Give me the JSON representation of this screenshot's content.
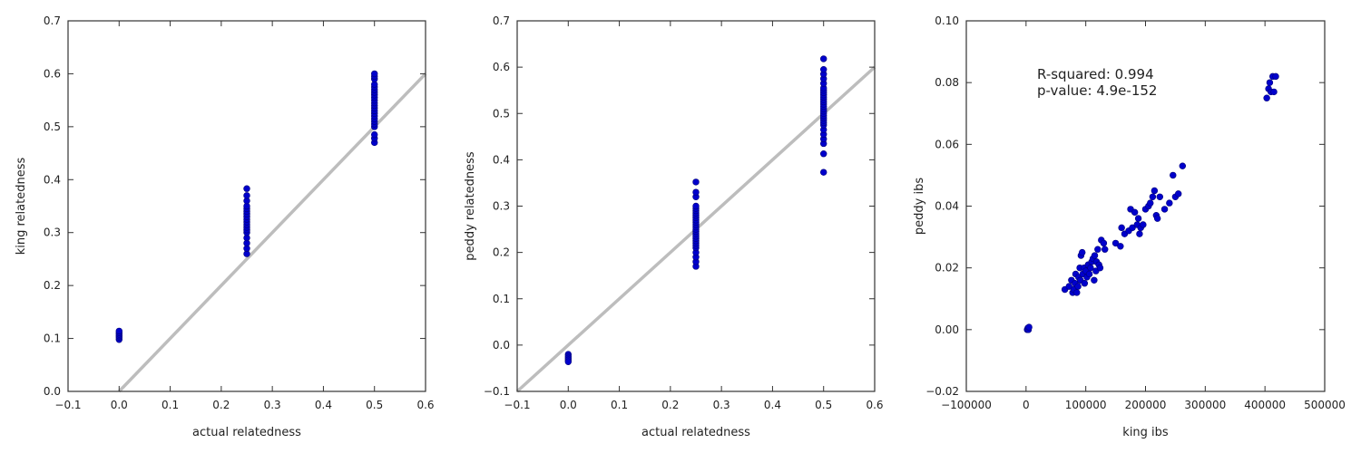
{
  "colors": {
    "point": "#0000cc",
    "point_edge": "#00007a",
    "reference_line": "#bdbdbd",
    "axes": "#333333"
  },
  "chart_data": [
    {
      "type": "scatter",
      "xlabel": "actual relatedness",
      "ylabel": "king relatedness",
      "xlim": [
        -0.1,
        0.6
      ],
      "ylim": [
        0.0,
        0.7
      ],
      "xticks": [
        "−0.1",
        "0.0",
        "0.1",
        "0.2",
        "0.3",
        "0.4",
        "0.5",
        "0.6"
      ],
      "yticks": [
        "0.0",
        "0.1",
        "0.2",
        "0.3",
        "0.4",
        "0.5",
        "0.6",
        "0.7"
      ],
      "grid": false,
      "reference_line": {
        "from": [
          0.0,
          0.0
        ],
        "to": [
          0.6,
          0.6
        ]
      },
      "points": [
        [
          0.0,
          0.098
        ],
        [
          0.0,
          0.102
        ],
        [
          0.0,
          0.105
        ],
        [
          0.0,
          0.108
        ],
        [
          0.0,
          0.111
        ],
        [
          0.0,
          0.114
        ],
        [
          0.25,
          0.26
        ],
        [
          0.25,
          0.27
        ],
        [
          0.25,
          0.28
        ],
        [
          0.25,
          0.29
        ],
        [
          0.25,
          0.3
        ],
        [
          0.25,
          0.305
        ],
        [
          0.25,
          0.31
        ],
        [
          0.25,
          0.315
        ],
        [
          0.25,
          0.32
        ],
        [
          0.25,
          0.325
        ],
        [
          0.25,
          0.33
        ],
        [
          0.25,
          0.335
        ],
        [
          0.25,
          0.34
        ],
        [
          0.25,
          0.345
        ],
        [
          0.25,
          0.35
        ],
        [
          0.25,
          0.36
        ],
        [
          0.25,
          0.37
        ],
        [
          0.25,
          0.383
        ],
        [
          0.5,
          0.47
        ],
        [
          0.5,
          0.478
        ],
        [
          0.5,
          0.485
        ],
        [
          0.5,
          0.5
        ],
        [
          0.5,
          0.505
        ],
        [
          0.5,
          0.51
        ],
        [
          0.5,
          0.515
        ],
        [
          0.5,
          0.52
        ],
        [
          0.5,
          0.525
        ],
        [
          0.5,
          0.53
        ],
        [
          0.5,
          0.535
        ],
        [
          0.5,
          0.54
        ],
        [
          0.5,
          0.545
        ],
        [
          0.5,
          0.55
        ],
        [
          0.5,
          0.555
        ],
        [
          0.5,
          0.56
        ],
        [
          0.5,
          0.565
        ],
        [
          0.5,
          0.57
        ],
        [
          0.5,
          0.575
        ],
        [
          0.5,
          0.58
        ],
        [
          0.5,
          0.59
        ],
        [
          0.5,
          0.595
        ],
        [
          0.5,
          0.6
        ]
      ],
      "annotation": []
    },
    {
      "type": "scatter",
      "xlabel": "actual relatedness",
      "ylabel": "peddy relatedness",
      "xlim": [
        -0.1,
        0.6
      ],
      "ylim": [
        -0.1,
        0.7
      ],
      "xticks": [
        "−0.1",
        "0.0",
        "0.1",
        "0.2",
        "0.3",
        "0.4",
        "0.5",
        "0.6"
      ],
      "yticks": [
        "−0.1",
        "0.0",
        "0.1",
        "0.2",
        "0.3",
        "0.4",
        "0.5",
        "0.6",
        "0.7"
      ],
      "grid": false,
      "reference_line": {
        "from": [
          -0.1,
          -0.1
        ],
        "to": [
          0.6,
          0.6
        ]
      },
      "points": [
        [
          0.0,
          -0.02
        ],
        [
          0.0,
          -0.024
        ],
        [
          0.0,
          -0.028
        ],
        [
          0.0,
          -0.032
        ],
        [
          0.0,
          -0.036
        ],
        [
          0.25,
          0.17
        ],
        [
          0.25,
          0.18
        ],
        [
          0.25,
          0.19
        ],
        [
          0.25,
          0.2
        ],
        [
          0.25,
          0.21
        ],
        [
          0.25,
          0.215
        ],
        [
          0.25,
          0.22
        ],
        [
          0.25,
          0.225
        ],
        [
          0.25,
          0.23
        ],
        [
          0.25,
          0.235
        ],
        [
          0.25,
          0.24
        ],
        [
          0.25,
          0.245
        ],
        [
          0.25,
          0.25
        ],
        [
          0.25,
          0.255
        ],
        [
          0.25,
          0.26
        ],
        [
          0.25,
          0.265
        ],
        [
          0.25,
          0.27
        ],
        [
          0.25,
          0.275
        ],
        [
          0.25,
          0.28
        ],
        [
          0.25,
          0.285
        ],
        [
          0.25,
          0.29
        ],
        [
          0.25,
          0.295
        ],
        [
          0.25,
          0.3
        ],
        [
          0.25,
          0.32
        ],
        [
          0.25,
          0.33
        ],
        [
          0.25,
          0.352
        ],
        [
          0.5,
          0.373
        ],
        [
          0.5,
          0.413
        ],
        [
          0.5,
          0.435
        ],
        [
          0.5,
          0.445
        ],
        [
          0.5,
          0.455
        ],
        [
          0.5,
          0.465
        ],
        [
          0.5,
          0.475
        ],
        [
          0.5,
          0.48
        ],
        [
          0.5,
          0.485
        ],
        [
          0.5,
          0.49
        ],
        [
          0.5,
          0.495
        ],
        [
          0.5,
          0.5
        ],
        [
          0.5,
          0.505
        ],
        [
          0.5,
          0.51
        ],
        [
          0.5,
          0.515
        ],
        [
          0.5,
          0.52
        ],
        [
          0.5,
          0.525
        ],
        [
          0.5,
          0.53
        ],
        [
          0.5,
          0.535
        ],
        [
          0.5,
          0.54
        ],
        [
          0.5,
          0.545
        ],
        [
          0.5,
          0.55
        ],
        [
          0.5,
          0.555
        ],
        [
          0.5,
          0.565
        ],
        [
          0.5,
          0.575
        ],
        [
          0.5,
          0.585
        ],
        [
          0.5,
          0.595
        ],
        [
          0.5,
          0.618
        ]
      ],
      "annotation": []
    },
    {
      "type": "scatter",
      "xlabel": "king ibs",
      "ylabel": "peddy ibs",
      "xlim": [
        -100000,
        500000
      ],
      "ylim": [
        -0.02,
        0.1
      ],
      "xticks": [
        "−100000",
        "0",
        "100000",
        "200000",
        "300000",
        "400000",
        "500000"
      ],
      "yticks": [
        "−0.02",
        "0.00",
        "0.02",
        "0.04",
        "0.06",
        "0.08",
        "0.10"
      ],
      "grid": false,
      "reference_line": null,
      "points": [
        [
          2000,
          0.0
        ],
        [
          3000,
          0.0005
        ],
        [
          4000,
          0.0
        ],
        [
          5000,
          0.0008
        ],
        [
          65000,
          0.013
        ],
        [
          72000,
          0.014
        ],
        [
          76000,
          0.016
        ],
        [
          78000,
          0.012
        ],
        [
          80000,
          0.013
        ],
        [
          82000,
          0.015
        ],
        [
          83000,
          0.018
        ],
        [
          85000,
          0.012
        ],
        [
          87000,
          0.014
        ],
        [
          88000,
          0.017
        ],
        [
          90000,
          0.02
        ],
        [
          91000,
          0.016
        ],
        [
          92000,
          0.024
        ],
        [
          94000,
          0.025
        ],
        [
          95000,
          0.018
        ],
        [
          97000,
          0.02
        ],
        [
          98000,
          0.015
        ],
        [
          100000,
          0.019
        ],
        [
          102000,
          0.017
        ],
        [
          104000,
          0.021
        ],
        [
          106000,
          0.018
        ],
        [
          108000,
          0.02
        ],
        [
          110000,
          0.022
        ],
        [
          112000,
          0.023
        ],
        [
          114000,
          0.016
        ],
        [
          115000,
          0.024
        ],
        [
          117000,
          0.019
        ],
        [
          118000,
          0.022
        ],
        [
          120000,
          0.026
        ],
        [
          122000,
          0.021
        ],
        [
          124000,
          0.02
        ],
        [
          126000,
          0.029
        ],
        [
          130000,
          0.028
        ],
        [
          132000,
          0.026
        ],
        [
          150000,
          0.028
        ],
        [
          158000,
          0.027
        ],
        [
          160000,
          0.033
        ],
        [
          165000,
          0.031
        ],
        [
          172000,
          0.032
        ],
        [
          175000,
          0.039
        ],
        [
          178000,
          0.033
        ],
        [
          182000,
          0.038
        ],
        [
          186000,
          0.034
        ],
        [
          188000,
          0.036
        ],
        [
          190000,
          0.031
        ],
        [
          192000,
          0.033
        ],
        [
          196000,
          0.034
        ],
        [
          200000,
          0.039
        ],
        [
          205000,
          0.04
        ],
        [
          208000,
          0.041
        ],
        [
          212000,
          0.043
        ],
        [
          215000,
          0.045
        ],
        [
          218000,
          0.037
        ],
        [
          220000,
          0.036
        ],
        [
          224000,
          0.043
        ],
        [
          232000,
          0.039
        ],
        [
          240000,
          0.041
        ],
        [
          246000,
          0.05
        ],
        [
          250000,
          0.043
        ],
        [
          255000,
          0.044
        ],
        [
          262000,
          0.053
        ],
        [
          403000,
          0.075
        ],
        [
          406000,
          0.078
        ],
        [
          408000,
          0.08
        ],
        [
          410000,
          0.077
        ],
        [
          413000,
          0.082
        ],
        [
          415000,
          0.077
        ],
        [
          418000,
          0.082
        ]
      ],
      "annotation": [
        "R-squared: 0.994",
        "p-value: 4.9e-152"
      ]
    }
  ]
}
